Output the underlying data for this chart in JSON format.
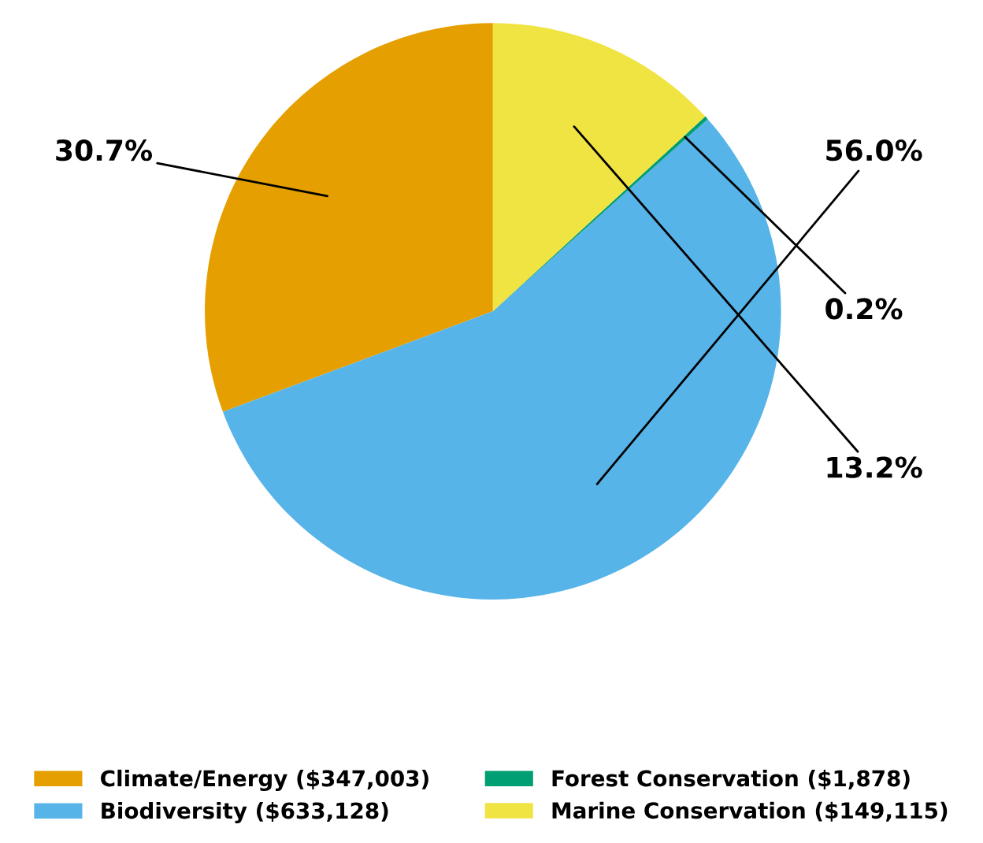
{
  "chart_data": {
    "type": "pie",
    "categories": [
      "Climate/Energy ($347,003)",
      "Biodiversity ($633,128)",
      "Forest Conservation ($1,878)",
      "Marine Conservation ($149,115)"
    ],
    "values": [
      30.7,
      56.0,
      0.2,
      13.2
    ],
    "value_labels": [
      "30.7%",
      "56.0%",
      "0.2%",
      "13.2%"
    ],
    "colors": [
      "#e69f00",
      "#56b4e9",
      "#009e73",
      "#f0e442"
    ],
    "legend": "bottom"
  }
}
